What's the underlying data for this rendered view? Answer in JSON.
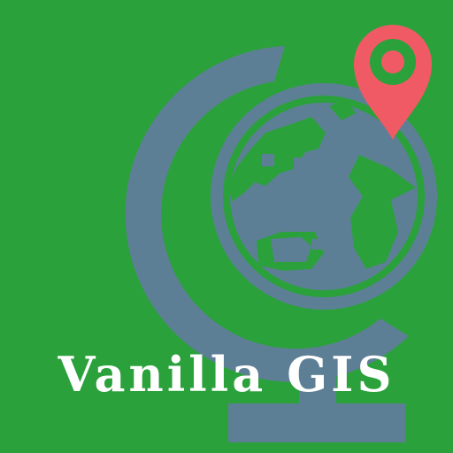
{
  "app": {
    "name": "Vanilla GIS"
  },
  "icons": {
    "globe": "globe-icon",
    "map_pin": "map-pin-icon"
  },
  "colors": {
    "background": "#2aa13b",
    "globe": "#5d7f96",
    "land": "#5d7f96",
    "pin": "#f05a64",
    "pin_dot": "#f05a64",
    "text": "#ffffff"
  }
}
